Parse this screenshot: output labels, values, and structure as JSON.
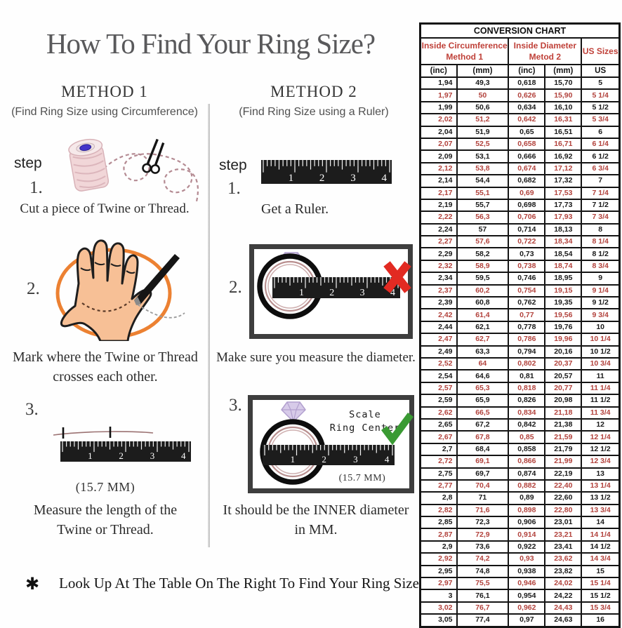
{
  "title": "How To Find Your Ring Size?",
  "method1": {
    "heading": "METHOD 1",
    "subtitle": "(Find Ring Size using Circumference)",
    "step_label": "step",
    "steps": [
      {
        "number": "1.",
        "caption": "Cut a piece of  Twine or Thread."
      },
      {
        "number": "2.",
        "caption_line1": "Mark where the Twine or Thread",
        "caption_line2": "crosses each other."
      },
      {
        "number": "3.",
        "measurement": "(15.7 MM)",
        "caption_line1": "Measure the length of the",
        "caption_line2": "Twine or Thread."
      }
    ]
  },
  "method2": {
    "heading": "METHOD 2",
    "subtitle": "(Find Ring Size using a Ruler)",
    "step_label": "step",
    "steps": [
      {
        "number": "1.",
        "caption": "Get a Ruler."
      },
      {
        "number": "2.",
        "caption": "Make sure you measure the diameter."
      },
      {
        "number": "3.",
        "annotation_line1": "Scale",
        "annotation_line2": "Ring Center",
        "measurement": "(15.7 MM)",
        "caption_line1": "It should be the INNER diameter",
        "caption_line2": "in MM."
      }
    ]
  },
  "ruler_numbers": [
    "1",
    "2",
    "3",
    "4"
  ],
  "footer": {
    "asterisk": "✱",
    "text": "Look Up At The Table On The Right To Find Your Ring Size."
  },
  "conversion_chart": {
    "title": "CONVERSION CHART",
    "col_groups": {
      "group1_line1": "Inside Circumference",
      "group1_line2": "Method 1",
      "group2_line1": "Inside Diameter",
      "group2_line2": "Metod 2",
      "us_label": "US Sizes"
    },
    "units": [
      "(inc)",
      "(mm)",
      "(inc)",
      "(mm)",
      "US"
    ],
    "colors": {
      "row_red": "#b2423c",
      "header_red": "#bf4038",
      "row_black": "#191919"
    },
    "rows": [
      [
        "1,94",
        "49,3",
        "0,618",
        "15,70",
        "5"
      ],
      [
        "1,97",
        "50",
        "0,626",
        "15,90",
        "5 1/4"
      ],
      [
        "1,99",
        "50,6",
        "0,634",
        "16,10",
        "5 1/2"
      ],
      [
        "2,02",
        "51,2",
        "0,642",
        "16,31",
        "5 3/4"
      ],
      [
        "2,04",
        "51,9",
        "0,65",
        "16,51",
        "6"
      ],
      [
        "2,07",
        "52,5",
        "0,658",
        "16,71",
        "6 1/4"
      ],
      [
        "2,09",
        "53,1",
        "0,666",
        "16,92",
        "6 1/2"
      ],
      [
        "2,12",
        "53,8",
        "0,674",
        "17,12",
        "6 3/4"
      ],
      [
        "2,14",
        "54,4",
        "0,682",
        "17,32",
        "7"
      ],
      [
        "2,17",
        "55,1",
        "0,69",
        "17,53",
        "7 1/4"
      ],
      [
        "2,19",
        "55,7",
        "0,698",
        "17,73",
        "7 1/2"
      ],
      [
        "2,22",
        "56,3",
        "0,706",
        "17,93",
        "7 3/4"
      ],
      [
        "2,24",
        "57",
        "0,714",
        "18,13",
        "8"
      ],
      [
        "2,27",
        "57,6",
        "0,722",
        "18,34",
        "8 1/4"
      ],
      [
        "2,29",
        "58,2",
        "0,73",
        "18,54",
        "8 1/2"
      ],
      [
        "2,32",
        "58,9",
        "0,738",
        "18,74",
        "8 3/4"
      ],
      [
        "2,34",
        "59,5",
        "0,746",
        "18,95",
        "9"
      ],
      [
        "2,37",
        "60,2",
        "0,754",
        "19,15",
        "9 1/4"
      ],
      [
        "2,39",
        "60,8",
        "0,762",
        "19,35",
        "9 1/2"
      ],
      [
        "2,42",
        "61,4",
        "0,77",
        "19,56",
        "9 3/4"
      ],
      [
        "2,44",
        "62,1",
        "0,778",
        "19,76",
        "10"
      ],
      [
        "2,47",
        "62,7",
        "0,786",
        "19,96",
        "10 1/4"
      ],
      [
        "2,49",
        "63,3",
        "0,794",
        "20,16",
        "10 1/2"
      ],
      [
        "2,52",
        "64",
        "0,802",
        "20,37",
        "10 3/4"
      ],
      [
        "2,54",
        "64,6",
        "0,81",
        "20,57",
        "11"
      ],
      [
        "2,57",
        "65,3",
        "0,818",
        "20,77",
        "11 1/4"
      ],
      [
        "2,59",
        "65,9",
        "0,826",
        "20,98",
        "11 1/2"
      ],
      [
        "2,62",
        "66,5",
        "0,834",
        "21,18",
        "11 3/4"
      ],
      [
        "2,65",
        "67,2",
        "0,842",
        "21,38",
        "12"
      ],
      [
        "2,67",
        "67,8",
        "0,85",
        "21,59",
        "12 1/4"
      ],
      [
        "2,7",
        "68,4",
        "0,858",
        "21,79",
        "12 1/2"
      ],
      [
        "2,72",
        "69,1",
        "0,866",
        "21,99",
        "12 3/4"
      ],
      [
        "2,75",
        "69,7",
        "0,874",
        "22,19",
        "13"
      ],
      [
        "2,77",
        "70,4",
        "0,882",
        "22,40",
        "13 1/4"
      ],
      [
        "2,8",
        "71",
        "0,89",
        "22,60",
        "13 1/2"
      ],
      [
        "2,82",
        "71,6",
        "0,898",
        "22,80",
        "13 3/4"
      ],
      [
        "2,85",
        "72,3",
        "0,906",
        "23,01",
        "14"
      ],
      [
        "2,87",
        "72,9",
        "0,914",
        "23,21",
        "14 1/4"
      ],
      [
        "2,9",
        "73,6",
        "0,922",
        "23,41",
        "14 1/2"
      ],
      [
        "2,92",
        "74,2",
        "0,93",
        "23,62",
        "14 3/4"
      ],
      [
        "2,95",
        "74,8",
        "0,938",
        "23,82",
        "15"
      ],
      [
        "2,97",
        "75,5",
        "0,946",
        "24,02",
        "15 1/4"
      ],
      [
        "3",
        "76,1",
        "0,954",
        "24,22",
        "15 1/2"
      ],
      [
        "3,02",
        "76,7",
        "0,962",
        "24,43",
        "15 3/4"
      ],
      [
        "3,05",
        "77,4",
        "0,97",
        "24,63",
        "16"
      ]
    ]
  }
}
